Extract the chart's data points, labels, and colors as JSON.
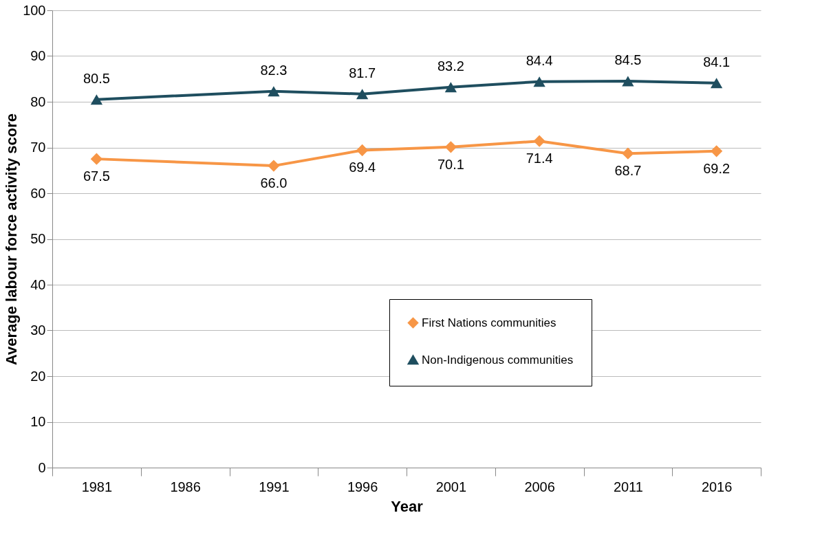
{
  "chart_data": {
    "type": "line",
    "xlabel": "Year",
    "ylabel": "Average labour force activity score",
    "categories": [
      "1981",
      "1986",
      "1991",
      "1996",
      "2001",
      "2006",
      "2011",
      "2016"
    ],
    "series": [
      {
        "name": "First Nations communities",
        "color": "#f79646",
        "marker": "diamond",
        "values": [
          67.5,
          null,
          66.0,
          69.4,
          70.1,
          71.4,
          68.7,
          69.2
        ],
        "value_labels": [
          "67.5",
          null,
          "66.0",
          "69.4",
          "70.1",
          "71.4",
          "68.7",
          "69.2"
        ]
      },
      {
        "name": "Non-Indigenous communities",
        "color": "#1f4e5f",
        "marker": "triangle",
        "values": [
          80.5,
          null,
          82.3,
          81.7,
          83.2,
          84.4,
          84.5,
          84.1
        ],
        "value_labels": [
          "80.5",
          null,
          "82.3",
          "81.7",
          "83.2",
          "84.4",
          "84.5",
          "84.1"
        ]
      }
    ],
    "ylim": [
      0,
      100
    ],
    "yticks": [
      0,
      10,
      20,
      30,
      40,
      50,
      60,
      70,
      80,
      90,
      100
    ],
    "grid": "y",
    "legend": "bottom right",
    "line_style": "solid"
  }
}
